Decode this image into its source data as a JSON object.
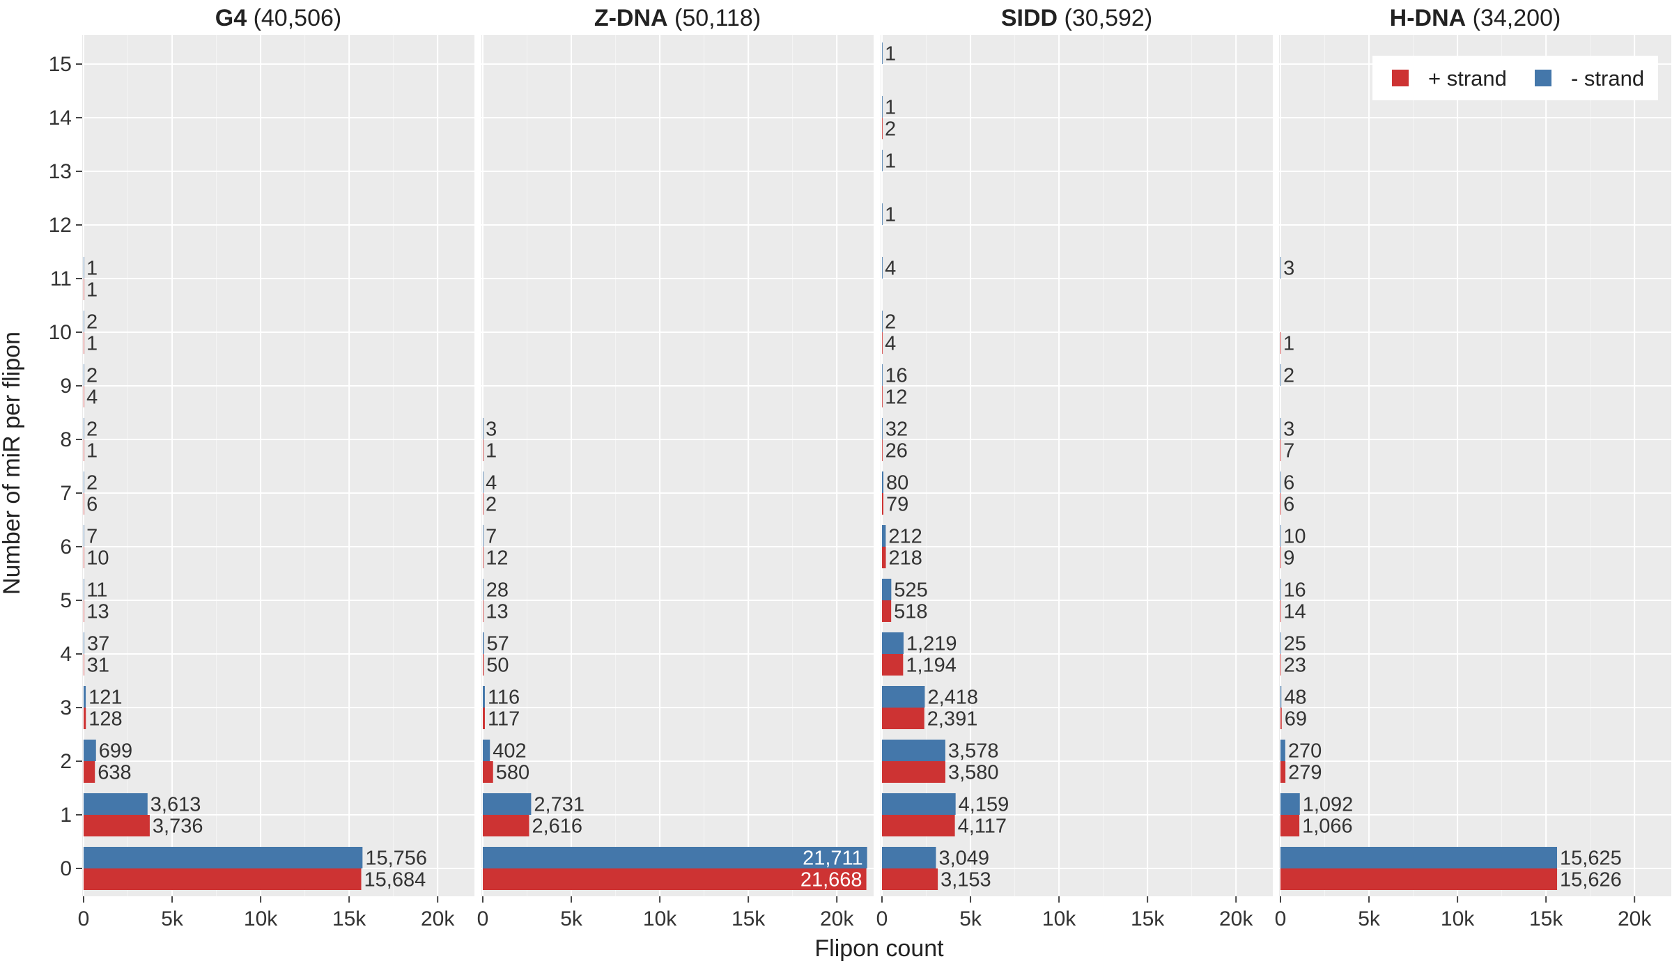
{
  "chart_data": {
    "type": "bar",
    "orientation": "horizontal",
    "xlabel": "Flipon count",
    "ylabel": "Number of miR per flipon",
    "xlim": [
      0,
      22000
    ],
    "xticks": [
      0,
      5000,
      10000,
      15000,
      20000
    ],
    "xtick_labels": [
      "0",
      "5k",
      "10k",
      "15k",
      "20k"
    ],
    "categories": [
      "0",
      "1",
      "2",
      "3",
      "4",
      "5",
      "6",
      "7",
      "8",
      "9",
      "10",
      "11",
      "12",
      "13",
      "14",
      "15"
    ],
    "grid": true,
    "legend": {
      "position": "top-right",
      "entries": [
        {
          "label": "+ strand",
          "color": "#cd3333"
        },
        {
          "label": "- strand",
          "color": "#4477aa"
        }
      ]
    },
    "panels": [
      {
        "name": "G4",
        "total": "(40,506)",
        "series": [
          {
            "name": "+ strand",
            "values": [
              15684,
              3736,
              638,
              128,
              31,
              13,
              10,
              6,
              1,
              4,
              1,
              1,
              null,
              null,
              null,
              null
            ],
            "labels": [
              "15,684",
              "3,736",
              "638",
              "128",
              "31",
              "13",
              "10",
              "6",
              "1",
              "4",
              "1",
              "1",
              null,
              null,
              null,
              null
            ]
          },
          {
            "name": "- strand",
            "values": [
              15756,
              3613,
              699,
              121,
              37,
              11,
              7,
              2,
              2,
              2,
              2,
              1,
              null,
              null,
              null,
              null
            ],
            "labels": [
              "15,756",
              "3,613",
              "699",
              "121",
              "37",
              "11",
              "7",
              "2",
              "2",
              "2",
              "2",
              "1",
              null,
              null,
              null,
              null
            ]
          }
        ]
      },
      {
        "name": "Z-DNA",
        "total": "(50,118)",
        "series": [
          {
            "name": "+ strand",
            "values": [
              21668,
              2616,
              580,
              117,
              50,
              13,
              12,
              2,
              1,
              null,
              null,
              null,
              null,
              null,
              null,
              null
            ],
            "labels": [
              "21,668",
              "2,616",
              "580",
              "117",
              "50",
              "13",
              "12",
              "2",
              "1",
              null,
              null,
              null,
              null,
              null,
              null,
              null
            ]
          },
          {
            "name": "- strand",
            "values": [
              21711,
              2731,
              402,
              116,
              57,
              28,
              7,
              4,
              3,
              null,
              null,
              null,
              null,
              null,
              null,
              null
            ],
            "labels": [
              "21,711",
              "2,731",
              "402",
              "116",
              "57",
              "28",
              "7",
              "4",
              "3",
              null,
              null,
              null,
              null,
              null,
              null,
              null
            ]
          }
        ]
      },
      {
        "name": "SIDD",
        "total": "(30,592)",
        "series": [
          {
            "name": "+ strand",
            "values": [
              3153,
              4117,
              3580,
              2391,
              1194,
              518,
              218,
              79,
              26,
              12,
              4,
              null,
              null,
              null,
              2,
              null
            ],
            "labels": [
              "3,153",
              "4,117",
              "3,580",
              "2,391",
              "1,194",
              "518",
              "218",
              "79",
              "26",
              "12",
              "4",
              null,
              null,
              null,
              "2",
              null
            ]
          },
          {
            "name": "- strand",
            "values": [
              3049,
              4159,
              3578,
              2418,
              1219,
              525,
              212,
              80,
              32,
              16,
              2,
              4,
              1,
              1,
              1,
              1
            ],
            "labels": [
              "3,049",
              "4,159",
              "3,578",
              "2,418",
              "1,219",
              "525",
              "212",
              "80",
              "32",
              "16",
              "2",
              "4",
              "1",
              "1",
              "1",
              "1"
            ]
          }
        ]
      },
      {
        "name": "H-DNA",
        "total": "(34,200)",
        "series": [
          {
            "name": "+ strand",
            "values": [
              15626,
              1066,
              279,
              69,
              23,
              14,
              9,
              6,
              7,
              null,
              1,
              null,
              null,
              null,
              null,
              null
            ],
            "labels": [
              "15,626",
              "1,066",
              "279",
              "69",
              "23",
              "14",
              "9",
              "6",
              "7",
              null,
              "1",
              null,
              null,
              null,
              null,
              null
            ]
          },
          {
            "name": "- strand",
            "values": [
              15625,
              1092,
              270,
              48,
              25,
              16,
              10,
              6,
              3,
              2,
              null,
              3,
              null,
              null,
              null,
              null
            ],
            "labels": [
              "15,625",
              "1,092",
              "270",
              "48",
              "25",
              "16",
              "10",
              "6",
              "3",
              "2",
              null,
              "3",
              null,
              null,
              null,
              null
            ]
          }
        ]
      }
    ]
  }
}
